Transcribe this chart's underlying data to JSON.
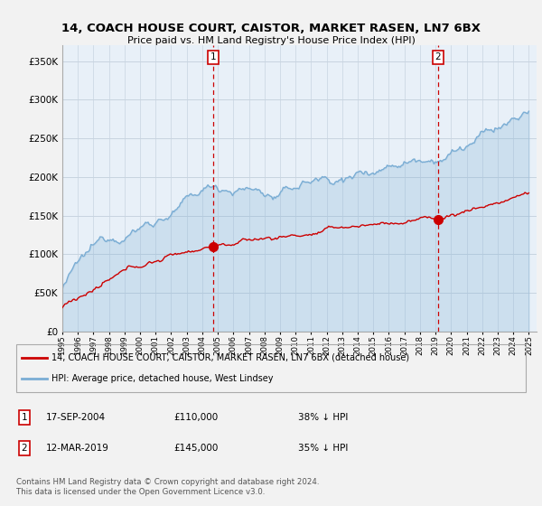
{
  "title": "14, COACH HOUSE COURT, CAISTOR, MARKET RASEN, LN7 6BX",
  "subtitle": "Price paid vs. HM Land Registry's House Price Index (HPI)",
  "ylim": [
    0,
    370000
  ],
  "yticks": [
    0,
    50000,
    100000,
    150000,
    200000,
    250000,
    300000,
    350000
  ],
  "sale1_date": "17-SEP-2004",
  "sale1_price": 110000,
  "sale1_pct": "38% ↓ HPI",
  "sale2_date": "12-MAR-2019",
  "sale2_price": 145000,
  "sale2_pct": "35% ↓ HPI",
  "legend_label_red": "14, COACH HOUSE COURT, CAISTOR, MARKET RASEN, LN7 6BX (detached house)",
  "legend_label_blue": "HPI: Average price, detached house, West Lindsey",
  "footer": "Contains HM Land Registry data © Crown copyright and database right 2024.\nThis data is licensed under the Open Government Licence v3.0.",
  "red_color": "#cc0000",
  "blue_color": "#7aadd4",
  "blue_fill": "#ddeeff",
  "vline_color": "#cc0000",
  "background_color": "#f2f2f2",
  "plot_bg_color": "#e8f0f8",
  "grid_color": "#c8d4e0",
  "sale1_year": 2004.708,
  "sale2_year": 2019.167
}
